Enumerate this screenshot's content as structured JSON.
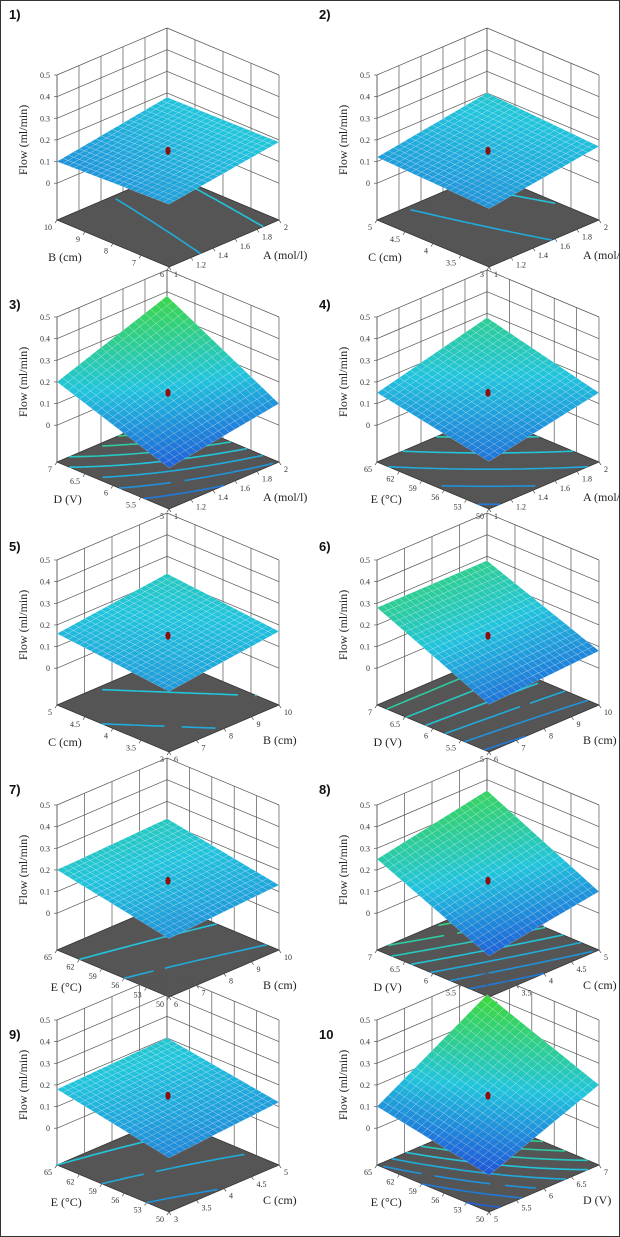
{
  "chart_data": [
    {
      "label": "1)",
      "type": "surface3d",
      "x1": {
        "label": "A (mol/l)",
        "ticks": [
          "1",
          "1.2",
          "1.4",
          "1.6",
          "1.8",
          "2"
        ]
      },
      "x2": {
        "label": "B (cm)",
        "ticks": [
          "6",
          "7",
          "8",
          "9",
          "10"
        ]
      },
      "z": {
        "label": "Flow (ml/min)",
        "ticks": [
          "0",
          "0.1",
          "0.2",
          "0.3",
          "0.4",
          "0.5"
        ],
        "range": [
          0,
          0.5
        ]
      },
      "surface_corners": {
        "x1min_x2min": 0.12,
        "x1max_x2min": 0.19,
        "x1min_x2max": 0.1,
        "x1max_x2max": 0.18
      },
      "design_point": 0.15
    },
    {
      "label": "2)",
      "type": "surface3d",
      "x1": {
        "label": "A (mol/l)",
        "ticks": [
          "1",
          "1.2",
          "1.4",
          "1.6",
          "1.8",
          "2"
        ]
      },
      "x2": {
        "label": "C (cm)",
        "ticks": [
          "3",
          "3.5",
          "4",
          "4.5",
          "5"
        ]
      },
      "z": {
        "label": "Flow (ml/min)",
        "ticks": [
          "0",
          "0.1",
          "0.2",
          "0.3",
          "0.4",
          "0.5"
        ],
        "range": [
          0,
          0.5
        ]
      },
      "surface_corners": {
        "x1min_x2min": 0.1,
        "x1max_x2min": 0.17,
        "x1min_x2max": 0.12,
        "x1max_x2max": 0.2
      },
      "design_point": 0.15
    },
    {
      "label": "3)",
      "type": "surface3d",
      "x1": {
        "label": "A (mol/l)",
        "ticks": [
          "1",
          "1.2",
          "1.4",
          "1.6",
          "1.8",
          "2"
        ]
      },
      "x2": {
        "label": "D (V)",
        "ticks": [
          "5",
          "5.5",
          "6",
          "6.5",
          "7"
        ]
      },
      "z": {
        "label": "Flow (ml/min)",
        "ticks": [
          "0",
          "0.1",
          "0.2",
          "0.3",
          "0.4",
          "0.5"
        ],
        "range": [
          0,
          0.5
        ]
      },
      "surface_corners": {
        "x1min_x2min": 0.02,
        "x1max_x2min": 0.1,
        "x1min_x2max": 0.2,
        "x1max_x2max": 0.38
      },
      "design_point": 0.15
    },
    {
      "label": "4)",
      "type": "surface3d",
      "x1": {
        "label": "A (mol/l)",
        "ticks": [
          "1",
          "1.2",
          "1.4",
          "1.6",
          "1.8",
          "2"
        ]
      },
      "x2": {
        "label": "E (°C)",
        "ticks": [
          "50",
          "53",
          "56",
          "59",
          "62",
          "65"
        ]
      },
      "z": {
        "label": "Flow (ml/min)",
        "ticks": [
          "0",
          "0.1",
          "0.2",
          "0.3",
          "0.4",
          "0.5"
        ],
        "range": [
          0,
          0.5
        ]
      },
      "surface_corners": {
        "x1min_x2min": 0.05,
        "x1max_x2min": 0.15,
        "x1min_x2max": 0.15,
        "x1max_x2max": 0.28
      },
      "design_point": 0.15
    },
    {
      "label": "5)",
      "type": "surface3d",
      "x1": {
        "label": "B (cm)",
        "ticks": [
          "6",
          "7",
          "8",
          "9",
          "10"
        ]
      },
      "x2": {
        "label": "C (cm)",
        "ticks": [
          "3",
          "3.5",
          "4",
          "4.5",
          "5"
        ]
      },
      "z": {
        "label": "Flow (ml/min)",
        "ticks": [
          "0",
          "0.1",
          "0.2",
          "0.3",
          "0.4",
          "0.5"
        ],
        "range": [
          0,
          0.5
        ]
      },
      "surface_corners": {
        "x1min_x2min": 0.11,
        "x1max_x2min": 0.17,
        "x1min_x2max": 0.16,
        "x1max_x2max": 0.22
      },
      "design_point": 0.15
    },
    {
      "label": "6)",
      "type": "surface3d",
      "x1": {
        "label": "B (cm)",
        "ticks": [
          "6",
          "7",
          "8",
          "9",
          "10"
        ]
      },
      "x2": {
        "label": "D (V)",
        "ticks": [
          "5",
          "5.5",
          "6",
          "6.5",
          "7"
        ]
      },
      "z": {
        "label": "Flow (ml/min)",
        "ticks": [
          "0",
          "0.1",
          "0.2",
          "0.3",
          "0.4",
          "0.5"
        ],
        "range": [
          0,
          0.5
        ]
      },
      "surface_corners": {
        "x1min_x2min": 0.05,
        "x1max_x2min": 0.08,
        "x1min_x2max": 0.28,
        "x1max_x2max": 0.28
      },
      "design_point": 0.15
    },
    {
      "label": "7)",
      "type": "surface3d",
      "x1": {
        "label": "B (cm)",
        "ticks": [
          "6",
          "7",
          "8",
          "9",
          "10"
        ]
      },
      "x2": {
        "label": "E (°C)",
        "ticks": [
          "50",
          "53",
          "56",
          "59",
          "62",
          "65"
        ]
      },
      "z": {
        "label": "Flow (ml/min)",
        "ticks": [
          "0",
          "0.1",
          "0.2",
          "0.3",
          "0.4",
          "0.5"
        ],
        "range": [
          0,
          0.5
        ]
      },
      "surface_corners": {
        "x1min_x2min": 0.1,
        "x1max_x2min": 0.13,
        "x1min_x2max": 0.2,
        "x1max_x2max": 0.22
      },
      "design_point": 0.15
    },
    {
      "label": "8)",
      "type": "surface3d",
      "x1": {
        "label": "C (cm)",
        "ticks": [
          "3",
          "3.5",
          "4",
          "4.5",
          "5"
        ]
      },
      "x2": {
        "label": "D (V)",
        "ticks": [
          "5",
          "5.5",
          "6",
          "6.5",
          "7"
        ]
      },
      "z": {
        "label": "Flow (ml/min)",
        "ticks": [
          "0",
          "0.1",
          "0.2",
          "0.3",
          "0.4",
          "0.5"
        ],
        "range": [
          0,
          0.5
        ]
      },
      "surface_corners": {
        "x1min_x2min": 0.02,
        "x1max_x2min": 0.1,
        "x1min_x2max": 0.25,
        "x1max_x2max": 0.35
      },
      "design_point": 0.15
    },
    {
      "label": "9)",
      "type": "surface3d",
      "x1": {
        "label": "C (cm)",
        "ticks": [
          "3",
          "3.5",
          "4",
          "4.5",
          "5"
        ]
      },
      "x2": {
        "label": "E (°C)",
        "ticks": [
          "50",
          "53",
          "56",
          "59",
          "62",
          "65"
        ]
      },
      "z": {
        "label": "Flow (ml/min)",
        "ticks": [
          "0",
          "0.1",
          "0.2",
          "0.3",
          "0.4",
          "0.5"
        ],
        "range": [
          0,
          0.5
        ]
      },
      "surface_corners": {
        "x1min_x2min": 0.08,
        "x1max_x2min": 0.12,
        "x1min_x2max": 0.18,
        "x1max_x2max": 0.2
      },
      "design_point": 0.15
    },
    {
      "label": "10",
      "type": "surface3d",
      "x1": {
        "label": "D (V)",
        "ticks": [
          "5",
          "5.5",
          "6",
          "6.5",
          "7"
        ]
      },
      "x2": {
        "label": "E (°C)",
        "ticks": [
          "50",
          "53",
          "56",
          "59",
          "62",
          "65"
        ]
      },
      "z": {
        "label": "Flow (ml/min)",
        "ticks": [
          "0",
          "0.1",
          "0.2",
          "0.3",
          "0.4",
          "0.5"
        ],
        "range": [
          0,
          0.5
        ]
      },
      "surface_corners": {
        "x1min_x2min": 0.0,
        "x1max_x2min": 0.2,
        "x1min_x2max": 0.1,
        "x1max_x2max": 0.4
      },
      "design_point": 0.15
    }
  ],
  "colors": {
    "floor": "#555555",
    "wall_grid": "#555555",
    "design_point": "#8b0f0f",
    "surface_low": "#1f55d8",
    "surface_mid": "#22c4dc",
    "surface_high": "#3fd83a"
  }
}
